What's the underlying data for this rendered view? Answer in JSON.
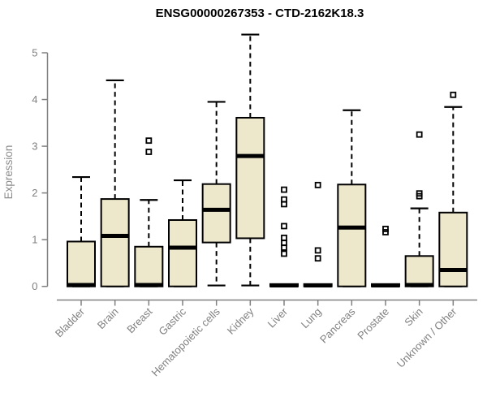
{
  "page": {
    "background": "#ffffff"
  },
  "chart_data": {
    "type": "boxplot",
    "title": "ENSG00000267353 - CTD-2162K18.3",
    "ylabel": "Expression",
    "xlabel": "",
    "ylim": [
      0,
      5.4
    ],
    "yticks": [
      0,
      1,
      2,
      3,
      4,
      5
    ],
    "grid": false,
    "legend": "none",
    "categories": [
      "Bladder",
      "Brain",
      "Breast",
      "Gastric",
      "Hematopoietic cells",
      "Kidney",
      "Liver",
      "Lung",
      "Pancreas",
      "Prostate",
      "Skin",
      "Unknown / Other"
    ],
    "boxes": [
      {
        "category": "Bladder",
        "whisker_low": 0,
        "q1": 0,
        "median": 0.03,
        "q3": 0.96,
        "whisker_high": 2.34,
        "outliers": []
      },
      {
        "category": "Brain",
        "whisker_low": 0,
        "q1": 0,
        "median": 1.08,
        "q3": 1.87,
        "whisker_high": 4.41,
        "outliers": []
      },
      {
        "category": "Breast",
        "whisker_low": 0,
        "q1": 0,
        "median": 0.03,
        "q3": 0.85,
        "whisker_high": 1.85,
        "outliers": [
          2.88,
          3.12
        ]
      },
      {
        "category": "Gastric",
        "whisker_low": 0,
        "q1": 0,
        "median": 0.83,
        "q3": 1.42,
        "whisker_high": 2.27,
        "outliers": []
      },
      {
        "category": "Hematopoietic cells",
        "whisker_low": 0.02,
        "q1": 0.94,
        "median": 1.64,
        "q3": 2.19,
        "whisker_high": 3.95,
        "outliers": []
      },
      {
        "category": "Kidney",
        "whisker_low": 0.02,
        "q1": 1.03,
        "median": 2.79,
        "q3": 3.61,
        "whisker_high": 5.39,
        "outliers": []
      },
      {
        "category": "Liver",
        "whisker_low": 0,
        "q1": 0,
        "median": 0.02,
        "q3": 0.05,
        "whisker_high": 0.05,
        "outliers": [
          0.7,
          0.83,
          0.93,
          1.04,
          1.29,
          1.76,
          1.86,
          2.07
        ]
      },
      {
        "category": "Lung",
        "whisker_low": 0,
        "q1": 0,
        "median": 0.02,
        "q3": 0.05,
        "whisker_high": 0.05,
        "outliers": [
          0.6,
          0.77,
          2.17
        ]
      },
      {
        "category": "Pancreas",
        "whisker_low": 0,
        "q1": 0,
        "median": 1.26,
        "q3": 2.18,
        "whisker_high": 3.77,
        "outliers": []
      },
      {
        "category": "Prostate",
        "whisker_low": 0,
        "q1": 0,
        "median": 0.02,
        "q3": 0.05,
        "whisker_high": 0.05,
        "outliers": [
          1.16,
          1.23
        ]
      },
      {
        "category": "Skin",
        "whisker_low": 0,
        "q1": 0,
        "median": 0.03,
        "q3": 0.65,
        "whisker_high": 1.67,
        "outliers": [
          1.93,
          1.99,
          3.25
        ]
      },
      {
        "category": "Unknown / Other",
        "whisker_low": 0,
        "q1": 0,
        "median": 0.35,
        "q3": 1.58,
        "whisker_high": 3.84,
        "outliers": [
          4.1
        ]
      }
    ],
    "colors": {
      "box_fill": "#ede7cb",
      "box_border": "#000000",
      "median": "#000000",
      "whisker": "#000000",
      "outlier": "#000000",
      "axis": "#808080",
      "tick_label": "#808080",
      "axis_label": "#8c8c8c",
      "title": "#000000"
    }
  }
}
